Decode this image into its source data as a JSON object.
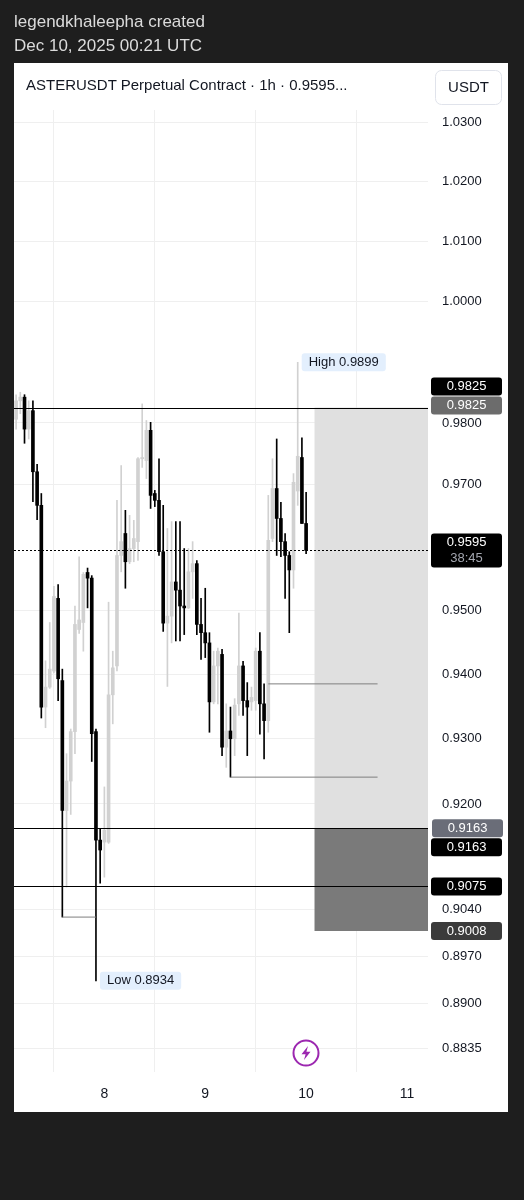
{
  "chart_data": {
    "type": "candlestick",
    "title": "ASTERUSDT Perpetual Contract · 1h · 0.9595...",
    "ylabel": "USDT",
    "annotations": [
      "legendkhaleepha created",
      "Dec 10, 2025 00:21 UTC",
      {
        "text": "High 0.9899",
        "x": "2025-12-09T22:00",
        "y": 0.9899
      },
      {
        "text": "0.9163",
        "x": "2025-12-11T05:00",
        "y": 0.9163
      },
      {
        "text": "Low 0.8934",
        "x": "2025-12-07T22:00",
        "y": 0.8934
      }
    ],
    "x": [
      "2025-12-07T03:00",
      "2025-12-07T04:00",
      "2025-12-07T05:00",
      "2025-12-07T06:00",
      "2025-12-07T07:00",
      "2025-12-07T08:00",
      "2025-12-07T09:00",
      "2025-12-07T10:00",
      "2025-12-07T11:00",
      "2025-12-07T12:00",
      "2025-12-07T13:00",
      "2025-12-07T14:00",
      "2025-12-07T15:00",
      "2025-12-07T16:00",
      "2025-12-07T17:00",
      "2025-12-07T18:00",
      "2025-12-07T19:00",
      "2025-12-07T20:00",
      "2025-12-07T21:00",
      "2025-12-07T22:00",
      "2025-12-07T23:00",
      "2025-12-08T00:00",
      "2025-12-08T01:00",
      "2025-12-08T02:00",
      "2025-12-08T03:00",
      "2025-12-08T04:00",
      "2025-12-08T05:00",
      "2025-12-08T06:00",
      "2025-12-08T07:00",
      "2025-12-08T08:00",
      "2025-12-08T09:00",
      "2025-12-08T10:00",
      "2025-12-08T11:00",
      "2025-12-08T12:00",
      "2025-12-08T13:00",
      "2025-12-08T14:00",
      "2025-12-08T15:00",
      "2025-12-08T16:00",
      "2025-12-08T17:00",
      "2025-12-08T18:00",
      "2025-12-08T19:00",
      "2025-12-08T20:00",
      "2025-12-08T21:00",
      "2025-12-08T22:00",
      "2025-12-08T23:00",
      "2025-12-09T00:00",
      "2025-12-09T01:00",
      "2025-12-09T02:00",
      "2025-12-09T03:00",
      "2025-12-09T04:00",
      "2025-12-09T05:00",
      "2025-12-09T06:00",
      "2025-12-09T07:00",
      "2025-12-09T08:00",
      "2025-12-09T09:00",
      "2025-12-09T10:00",
      "2025-12-09T11:00",
      "2025-12-09T12:00",
      "2025-12-09T13:00",
      "2025-12-09T14:00",
      "2025-12-09T15:00",
      "2025-12-09T16:00",
      "2025-12-09T17:00",
      "2025-12-09T18:00",
      "2025-12-09T19:00",
      "2025-12-09T20:00",
      "2025-12-09T21:00",
      "2025-12-09T22:00",
      "2025-12-09T23:00",
      "2025-12-10T00:00"
    ],
    "ohlc": [
      [
        0.9806,
        0.9846,
        0.979,
        0.9836
      ],
      [
        0.9836,
        0.985,
        0.9815,
        0.9842
      ],
      [
        0.9842,
        0.9846,
        0.9767,
        0.979
      ],
      [
        0.979,
        0.9836,
        0.9774,
        0.982
      ],
      [
        0.982,
        0.9836,
        0.9673,
        0.9721
      ],
      [
        0.9721,
        0.9733,
        0.9644,
        0.9667
      ],
      [
        0.9667,
        0.9686,
        0.9332,
        0.9349
      ],
      [
        0.9349,
        0.9421,
        0.9317,
        0.938
      ],
      [
        0.938,
        0.9481,
        0.9378,
        0.9408
      ],
      [
        0.9405,
        0.9538,
        0.9402,
        0.9522
      ],
      [
        0.9519,
        0.9541,
        0.9359,
        0.9393
      ],
      [
        0.939,
        0.9408,
        0.9029,
        0.919
      ],
      [
        0.919,
        0.9277,
        0.9074,
        0.9235
      ],
      [
        0.9235,
        0.9315,
        0.9184,
        0.9311
      ],
      [
        0.9311,
        0.9507,
        0.9277,
        0.9478
      ],
      [
        0.947,
        0.9585,
        0.9464,
        0.9485
      ],
      [
        0.9481,
        0.956,
        0.9436,
        0.9557
      ],
      [
        0.956,
        0.9567,
        0.9504,
        0.9551
      ],
      [
        0.9551,
        0.9555,
        0.9265,
        0.9308
      ],
      [
        0.9311,
        0.9315,
        0.8934,
        0.9145
      ],
      [
        0.9145,
        0.9163,
        0.908,
        0.913
      ],
      [
        0.9142,
        0.9226,
        0.9089,
        0.916
      ],
      [
        0.9142,
        0.9513,
        0.914,
        0.9368
      ],
      [
        0.9368,
        0.9436,
        0.9323,
        0.941
      ],
      [
        0.9413,
        0.9675,
        0.9405,
        0.9587
      ],
      [
        0.9587,
        0.9731,
        0.9561,
        0.9609
      ],
      [
        0.9622,
        0.9659,
        0.9535,
        0.9577
      ],
      [
        0.9577,
        0.9651,
        0.9574,
        0.9598
      ],
      [
        0.9598,
        0.9643,
        0.9577,
        0.9614
      ],
      [
        0.9609,
        0.9744,
        0.9579,
        0.9742
      ],
      [
        0.9742,
        0.9831,
        0.9728,
        0.9744
      ],
      [
        0.9739,
        0.9804,
        0.971,
        0.9788
      ],
      [
        0.9788,
        0.9801,
        0.9662,
        0.9683
      ],
      [
        0.9686,
        0.9691,
        0.9665,
        0.9675
      ],
      [
        0.9675,
        0.9742,
        0.9587,
        0.9593
      ],
      [
        0.9593,
        0.9667,
        0.9467,
        0.948
      ],
      [
        0.948,
        0.963,
        0.9381,
        0.9491
      ],
      [
        0.9491,
        0.9641,
        0.9449,
        0.9545
      ],
      [
        0.9545,
        0.9641,
        0.9452,
        0.9532
      ],
      [
        0.9532,
        0.9641,
        0.9452,
        0.9507
      ],
      [
        0.9507,
        0.9598,
        0.9462,
        0.9504
      ],
      [
        0.9504,
        0.9598,
        0.9503,
        0.9561
      ],
      [
        0.9561,
        0.9609,
        0.9519,
        0.9574
      ],
      [
        0.9574,
        0.9579,
        0.9462,
        0.9478
      ],
      [
        0.9478,
        0.9519,
        0.9423,
        0.9465
      ],
      [
        0.9465,
        0.9535,
        0.9426,
        0.9449
      ],
      [
        0.9449,
        0.9465,
        0.931,
        0.9357
      ],
      [
        0.9357,
        0.9436,
        0.9354,
        0.9413
      ],
      [
        0.9413,
        0.9441,
        0.9354,
        0.9436
      ],
      [
        0.9431,
        0.9439,
        0.9274,
        0.9287
      ],
      [
        0.9287,
        0.9354,
        0.9256,
        0.9312
      ],
      [
        0.9312,
        0.9349,
        0.9241,
        0.93
      ],
      [
        0.93,
        0.9362,
        0.9274,
        0.9352
      ],
      [
        0.9354,
        0.9496,
        0.9336,
        0.9413
      ],
      [
        0.9413,
        0.942,
        0.9336,
        0.9359
      ],
      [
        0.9359,
        0.9387,
        0.9274,
        0.9349
      ],
      [
        0.9357,
        0.938,
        0.9344,
        0.9364
      ],
      [
        0.9359,
        0.9441,
        0.9344,
        0.9436
      ],
      [
        0.9436,
        0.9465,
        0.9307,
        0.9354
      ],
      [
        0.9354,
        0.9385,
        0.9269,
        0.9328
      ],
      [
        0.9328,
        0.9683,
        0.931,
        0.9611
      ],
      [
        0.9614,
        0.9742,
        0.9609,
        0.9694
      ],
      [
        0.9694,
        0.9774,
        0.9587,
        0.9646
      ],
      [
        0.9646,
        0.9672,
        0.9585,
        0.9609
      ],
      [
        0.9609,
        0.9622,
        0.9519,
        0.9587
      ],
      [
        0.9587,
        0.9593,
        0.9465,
        0.9564
      ],
      [
        0.9564,
        0.9718,
        0.9535,
        0.9704
      ],
      [
        0.969,
        0.9899,
        0.9667,
        0.9746
      ],
      [
        0.9744,
        0.9776,
        0.9638,
        0.9638
      ],
      [
        0.9638,
        0.9688,
        0.959,
        0.9595
      ]
    ],
    "colors": [
      "#d1d1d1",
      "#d1d1d1",
      "#000000",
      "#d1d1d1",
      "#000000",
      "#000000",
      "#000000",
      "#d1d1d1",
      "#d1d1d1",
      "#d1d1d1",
      "#000000",
      "#000000",
      "#d1d1d1",
      "#d1d1d1",
      "#d1d1d1",
      "#d1d1d1",
      "#d1d1d1",
      "#000000",
      "#000000",
      "#000000",
      "#000000",
      "#d1d1d1",
      "#d1d1d1",
      "#d1d1d1",
      "#d1d1d1",
      "#d1d1d1",
      "#000000",
      "#d1d1d1",
      "#d1d1d1",
      "#d1d1d1",
      "#d1d1d1",
      "#d1d1d1",
      "#000000",
      "#000000",
      "#000000",
      "#000000",
      "#d1d1d1",
      "#d1d1d1",
      "#000000",
      "#000000",
      "#000000",
      "#d1d1d1",
      "#d1d1d1",
      "#000000",
      "#000000",
      "#000000",
      "#000000",
      "#d1d1d1",
      "#d1d1d1",
      "#000000",
      "#d1d1d1",
      "#000000",
      "#d1d1d1",
      "#d1d1d1",
      "#000000",
      "#000000",
      "#d1d1d1",
      "#d1d1d1",
      "#000000",
      "#000000",
      "#d1d1d1",
      "#d1d1d1",
      "#000000",
      "#000000",
      "#000000",
      "#000000",
      "#d1d1d1",
      "#d1d1d1",
      "#000000",
      "#000000"
    ],
    "series": [
      {
        "type": "line",
        "color": "#7f7f7f",
        "x": [
          "2025-12-07T14:00",
          "2025-12-07T22:00"
        ],
        "values": [
          0.9029,
          0.9029
        ]
      },
      {
        "type": "line",
        "color": "#7f7f7f",
        "x": [
          "2025-12-09T06:00",
          "2025-12-10T17:00"
        ],
        "values": [
          0.9241,
          0.9241
        ]
      },
      {
        "type": "line",
        "color": "#7f7f7f",
        "x": [
          "2025-12-09T15:00",
          "2025-12-10T17:00"
        ],
        "values": [
          0.9385,
          0.9385
        ]
      }
    ],
    "xlim": [
      "2025-12-07T02:30",
      "2025-12-11T05:00"
    ],
    "xticks": [
      {
        "value": "2025-12-08",
        "label": "8"
      },
      {
        "value": "2025-12-09",
        "label": "9"
      },
      {
        "value": "2025-12-10",
        "label": "10"
      },
      {
        "value": "2025-12-11",
        "label": "11"
      }
    ],
    "ylim": [
      0.8805,
      1.0322
    ],
    "yticks": [
      {
        "value": 1.03,
        "label": "1.0300"
      },
      {
        "value": 1.02,
        "label": "1.0200"
      },
      {
        "value": 1.01,
        "label": "1.0100"
      },
      {
        "value": 1.0,
        "label": "1.0000"
      },
      {
        "value": 0.98,
        "label": "0.9800"
      },
      {
        "value": 0.97,
        "label": "0.9700"
      },
      {
        "value": 0.95,
        "label": "0.9500"
      },
      {
        "value": 0.94,
        "label": "0.9400"
      },
      {
        "value": 0.93,
        "label": "0.9300"
      },
      {
        "value": 0.92,
        "label": "0.9200"
      },
      {
        "value": 0.904,
        "label": "0.9040"
      },
      {
        "value": 0.897,
        "label": "0.8970"
      },
      {
        "value": 0.89,
        "label": "0.8900"
      },
      {
        "value": 0.8835,
        "label": "0.8835"
      }
    ],
    "log": "y",
    "grid": true,
    "ref_lines": [
      {
        "axis": "y",
        "value": 0.9825,
        "label": "0.9825",
        "color": "#000000",
        "line_style": "solid"
      },
      {
        "axis": "y",
        "value": 0.9595,
        "label": "0.9595\n38:45",
        "color": "#000000",
        "line_style": "dotted"
      },
      {
        "axis": "y",
        "value": 0.9163,
        "label": "0.9163",
        "color": "#000000",
        "line_style": "solid"
      },
      {
        "axis": "y",
        "value": 0.9075,
        "label": "0.9075",
        "color": "#000000",
        "line_style": "solid"
      }
    ],
    "bands": [
      {
        "axis": "y",
        "from": 0.9163,
        "to": 0.9825,
        "label": "0.9825",
        "color": "#e0e0e0"
      },
      {
        "axis": "y",
        "from": 0.9008,
        "to": 0.9163,
        "label": "0.9008",
        "color": "#7a7a7a"
      }
    ]
  }
}
